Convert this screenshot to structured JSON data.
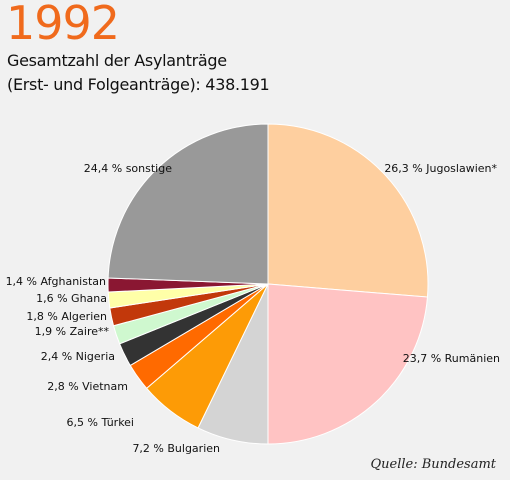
{
  "header": {
    "year": "1992",
    "subtitle_line1": "Gesamtzahl der Asylanträge",
    "subtitle_line2": "(Erst- und Folgeanträge): 438.191"
  },
  "source": "Quelle: Bundesamt",
  "colors": {
    "year": "#f06a1c"
  },
  "chart_data": {
    "type": "pie",
    "title": "1992",
    "total": "438.191",
    "start_angle_deg": 0,
    "direction": "clockwise",
    "slices": [
      {
        "label": "26,3 % Jugoslawien*",
        "value": 26.3,
        "color": "#fecf9f"
      },
      {
        "label": "23,7 % Rumänien",
        "value": 23.7,
        "color": "#ffc3c3"
      },
      {
        "label": "7,2 % Bulgarien",
        "value": 7.2,
        "color": "#d4d4d4"
      },
      {
        "label": "6,5 % Türkei",
        "value": 6.5,
        "color": "#fd9b06"
      },
      {
        "label": "2,8 % Vietnam",
        "value": 2.8,
        "color": "#ff6a00"
      },
      {
        "label": "2,4 % Nigeria",
        "value": 2.4,
        "color": "#333333"
      },
      {
        "label": "1,9 % Zaire**",
        "value": 1.9,
        "color": "#cff8cf"
      },
      {
        "label": "1,8 % Algerien",
        "value": 1.8,
        "color": "#c2380b"
      },
      {
        "label": "1,6 % Ghana",
        "value": 1.6,
        "color": "#ffffa8"
      },
      {
        "label": "1,4 % Afghanistan",
        "value": 1.4,
        "color": "#8a1732"
      },
      {
        "label": "24,4 % sonstige",
        "value": 24.4,
        "color": "#999999"
      }
    ]
  }
}
